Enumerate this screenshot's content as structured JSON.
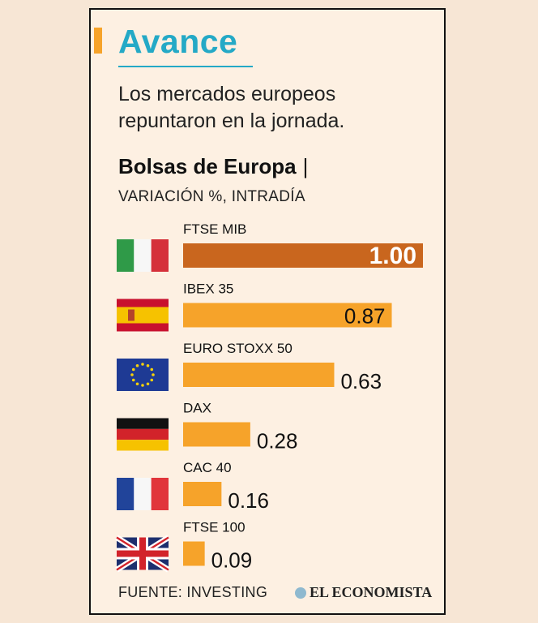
{
  "header": {
    "title": "Avance",
    "subtitle": "Los mercados europeos repuntaron en la jornada."
  },
  "chart_data": {
    "type": "bar",
    "title": "Bolsas de Europa",
    "title_separator": "|",
    "subtitle": "VARIACIÓN %, INTRADÍA",
    "categories": [
      "FTSE MIB",
      "IBEX 35",
      "EURO STOXX 50",
      "DAX",
      "CAC 40",
      "FTSE 100"
    ],
    "values": [
      1.0,
      0.87,
      0.63,
      0.28,
      0.16,
      0.09
    ],
    "value_labels": [
      "1.00",
      "0.87",
      "0.63",
      "0.28",
      "0.16",
      "0.09"
    ],
    "flags": [
      "italy-flag-icon",
      "spain-flag-icon",
      "eu-flag-icon",
      "germany-flag-icon",
      "france-flag-icon",
      "uk-flag-icon"
    ],
    "highlight_color": "#c9661e",
    "bar_color": "#f6a32a",
    "xlim": [
      0,
      1.0
    ],
    "grid": false
  },
  "footer": {
    "source": "FUENTE: INVESTING",
    "brand": "EL ECONOMISTA"
  },
  "colors": {
    "background": "#fdf0e2",
    "title": "#24a9c6",
    "accent": "#f6a32a"
  }
}
